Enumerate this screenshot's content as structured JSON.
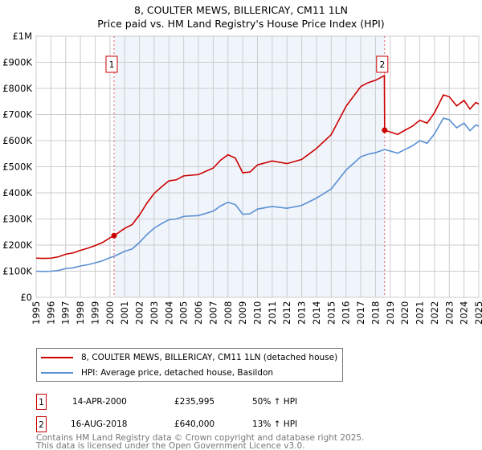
{
  "chart_data": {
    "type": "line",
    "title": "8, COULTER MEWS, BILLERICAY, CM11 1LN",
    "subtitle": "Price paid vs. HM Land Registry's House Price Index (HPI)",
    "xlim": [
      1995,
      2025
    ],
    "ylim": [
      0,
      1000000
    ],
    "y_ticks": [
      {
        "v": 0,
        "label": "£0"
      },
      {
        "v": 100000,
        "label": "£100K"
      },
      {
        "v": 200000,
        "label": "£200K"
      },
      {
        "v": 300000,
        "label": "£300K"
      },
      {
        "v": 400000,
        "label": "£400K"
      },
      {
        "v": 500000,
        "label": "£500K"
      },
      {
        "v": 600000,
        "label": "£600K"
      },
      {
        "v": 700000,
        "label": "£700K"
      },
      {
        "v": 800000,
        "label": "£800K"
      },
      {
        "v": 900000,
        "label": "£900K"
      },
      {
        "v": 1000000,
        "label": "£1M"
      }
    ],
    "x_ticks": [
      "1995",
      "1996",
      "1997",
      "1998",
      "1999",
      "2000",
      "2001",
      "2002",
      "2003",
      "2004",
      "2005",
      "2006",
      "2007",
      "2008",
      "2009",
      "2010",
      "2011",
      "2012",
      "2013",
      "2014",
      "2015",
      "2016",
      "2017",
      "2018",
      "2019",
      "2020",
      "2021",
      "2022",
      "2023",
      "2024",
      "2025"
    ],
    "grid": true,
    "shaded_range": [
      2000.28,
      2018.62
    ],
    "series": [
      {
        "name": "8, COULTER MEWS, BILLERICAY, CM11 1LN (detached house)",
        "color": "#cc0000",
        "x": [
          1995,
          1995.5,
          1996,
          1996.5,
          1997,
          1997.5,
          1998,
          1998.5,
          1999,
          1999.5,
          2000,
          2000.28,
          2001,
          2001.5,
          2002,
          2002.5,
          2003,
          2003.5,
          2004,
          2004.5,
          2005,
          2006,
          2007,
          2007.5,
          2008,
          2008.5,
          2009,
          2009.5,
          2010,
          2011,
          2012,
          2013,
          2014,
          2015,
          2016,
          2017,
          2017.5,
          2018,
          2018.6,
          2018.62,
          2019,
          2019.5,
          2020,
          2020.5,
          2021,
          2021.5,
          2022,
          2022.6,
          2023,
          2023.5,
          2024,
          2024.4,
          2024.8,
          2025
        ],
        "y": [
          150000,
          149000,
          150000,
          155000,
          165000,
          170000,
          180000,
          188000,
          198000,
          210000,
          228000,
          235995,
          264000,
          278000,
          315000,
          360000,
          398000,
          423000,
          446000,
          450000,
          465000,
          470000,
          495000,
          525000,
          546000,
          533000,
          477000,
          480000,
          507000,
          522000,
          512000,
          528000,
          570000,
          623000,
          731000,
          807000,
          822000,
          831000,
          849000,
          640000,
          633000,
          624000,
          640000,
          655000,
          678000,
          667000,
          707000,
          775000,
          768000,
          733000,
          754000,
          721000,
          746000,
          740000
        ]
      },
      {
        "name": "HPI: Average price, detached house, Basildon",
        "color": "#5b8fd4",
        "x": [
          1995,
          1995.5,
          1996,
          1996.5,
          1997,
          1997.5,
          1998,
          1998.5,
          1999,
          1999.5,
          2000,
          2000.28,
          2001,
          2001.5,
          2002,
          2002.5,
          2003,
          2003.5,
          2004,
          2004.5,
          2005,
          2006,
          2007,
          2007.5,
          2008,
          2008.5,
          2009,
          2009.5,
          2010,
          2011,
          2012,
          2013,
          2014,
          2015,
          2016,
          2017,
          2017.5,
          2018,
          2018.62,
          2019,
          2019.5,
          2020,
          2020.5,
          2021,
          2021.5,
          2022,
          2022.6,
          2023,
          2023.5,
          2024,
          2024.4,
          2024.8,
          2025
        ],
        "y": [
          100000,
          99000,
          100000,
          103000,
          110000,
          113000,
          120000,
          125000,
          132000,
          140000,
          152000,
          157000,
          176000,
          185000,
          210000,
          240000,
          265000,
          282000,
          297000,
          300000,
          310000,
          313000,
          330000,
          350000,
          364000,
          355000,
          318000,
          320000,
          338000,
          348000,
          341000,
          352000,
          380000,
          415000,
          487000,
          538000,
          548000,
          554000,
          566000,
          560000,
          552000,
          566000,
          580000,
          600000,
          590000,
          626000,
          686000,
          680000,
          649000,
          667000,
          638000,
          660000,
          655000
        ]
      }
    ],
    "sales": [
      {
        "id": "1",
        "x": 2000.28,
        "y": 235995,
        "date": "14-APR-2000",
        "price": "£235,995",
        "hpi": "50% ↑ HPI"
      },
      {
        "id": "2",
        "x": 2018.62,
        "y": 640000,
        "date": "16-AUG-2018",
        "price": "£640,000",
        "hpi": "13% ↑ HPI"
      }
    ],
    "legend_placement": "below"
  },
  "footer": {
    "line1": "Contains HM Land Registry data © Crown copyright and database right 2025.",
    "line2": "This data is licensed under the Open Government Licence v3.0."
  }
}
